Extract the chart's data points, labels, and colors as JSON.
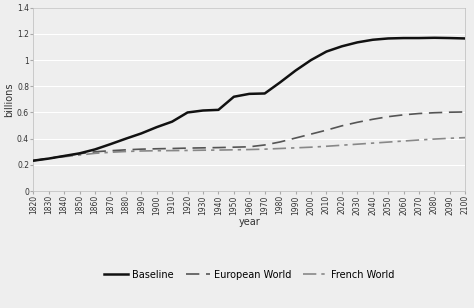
{
  "title": "",
  "xlabel": "year",
  "ylabel": "billions",
  "ylim": [
    0,
    1.4
  ],
  "xlim": [
    1820,
    2100
  ],
  "yticks": [
    0,
    0.2,
    0.4,
    0.6,
    0.8,
    1.0,
    1.2,
    1.4
  ],
  "baseline": {
    "years": [
      1820,
      1830,
      1840,
      1850,
      1860,
      1870,
      1880,
      1890,
      1900,
      1910,
      1920,
      1930,
      1940,
      1950,
      1960,
      1970,
      1980,
      1990,
      2000,
      2010,
      2020,
      2030,
      2040,
      2050,
      2060,
      2070,
      2080,
      2090,
      2100
    ],
    "values": [
      0.232,
      0.248,
      0.268,
      0.288,
      0.318,
      0.358,
      0.4,
      0.44,
      0.488,
      0.53,
      0.6,
      0.615,
      0.62,
      0.72,
      0.742,
      0.745,
      0.83,
      0.92,
      1.0,
      1.065,
      1.105,
      1.135,
      1.155,
      1.165,
      1.168,
      1.168,
      1.17,
      1.168,
      1.165
    ],
    "color": "#111111",
    "linestyle": "-",
    "linewidth": 1.8,
    "label": "Baseline"
  },
  "european_world": {
    "years": [
      1820,
      1830,
      1840,
      1850,
      1860,
      1870,
      1880,
      1890,
      1900,
      1910,
      1920,
      1930,
      1940,
      1950,
      1960,
      1970,
      1980,
      1990,
      2000,
      2010,
      2020,
      2030,
      2040,
      2050,
      2060,
      2070,
      2080,
      2090,
      2100
    ],
    "values": [
      0.232,
      0.25,
      0.268,
      0.285,
      0.3,
      0.308,
      0.315,
      0.32,
      0.323,
      0.325,
      0.328,
      0.33,
      0.332,
      0.335,
      0.338,
      0.352,
      0.375,
      0.405,
      0.435,
      0.465,
      0.498,
      0.525,
      0.548,
      0.568,
      0.582,
      0.592,
      0.598,
      0.602,
      0.604
    ],
    "color": "#555555",
    "linestyle": "--",
    "linewidth": 1.2,
    "label": "European World"
  },
  "french_world": {
    "years": [
      1820,
      1830,
      1840,
      1850,
      1860,
      1870,
      1880,
      1890,
      1900,
      1910,
      1920,
      1930,
      1940,
      1950,
      1960,
      1970,
      1980,
      1990,
      2000,
      2010,
      2020,
      2030,
      2040,
      2050,
      2060,
      2070,
      2080,
      2090,
      2100
    ],
    "values": [
      0.232,
      0.248,
      0.262,
      0.275,
      0.288,
      0.296,
      0.302,
      0.306,
      0.308,
      0.309,
      0.31,
      0.312,
      0.313,
      0.315,
      0.317,
      0.32,
      0.325,
      0.33,
      0.335,
      0.342,
      0.35,
      0.358,
      0.366,
      0.374,
      0.382,
      0.39,
      0.397,
      0.403,
      0.408
    ],
    "color": "#888888",
    "linestyle": "-.",
    "linewidth": 1.2,
    "label": "French World"
  },
  "background_color": "#eeeeee",
  "grid_color": "#ffffff",
  "legend_fontsize": 7,
  "axis_fontsize": 7,
  "tick_fontsize": 5.5
}
